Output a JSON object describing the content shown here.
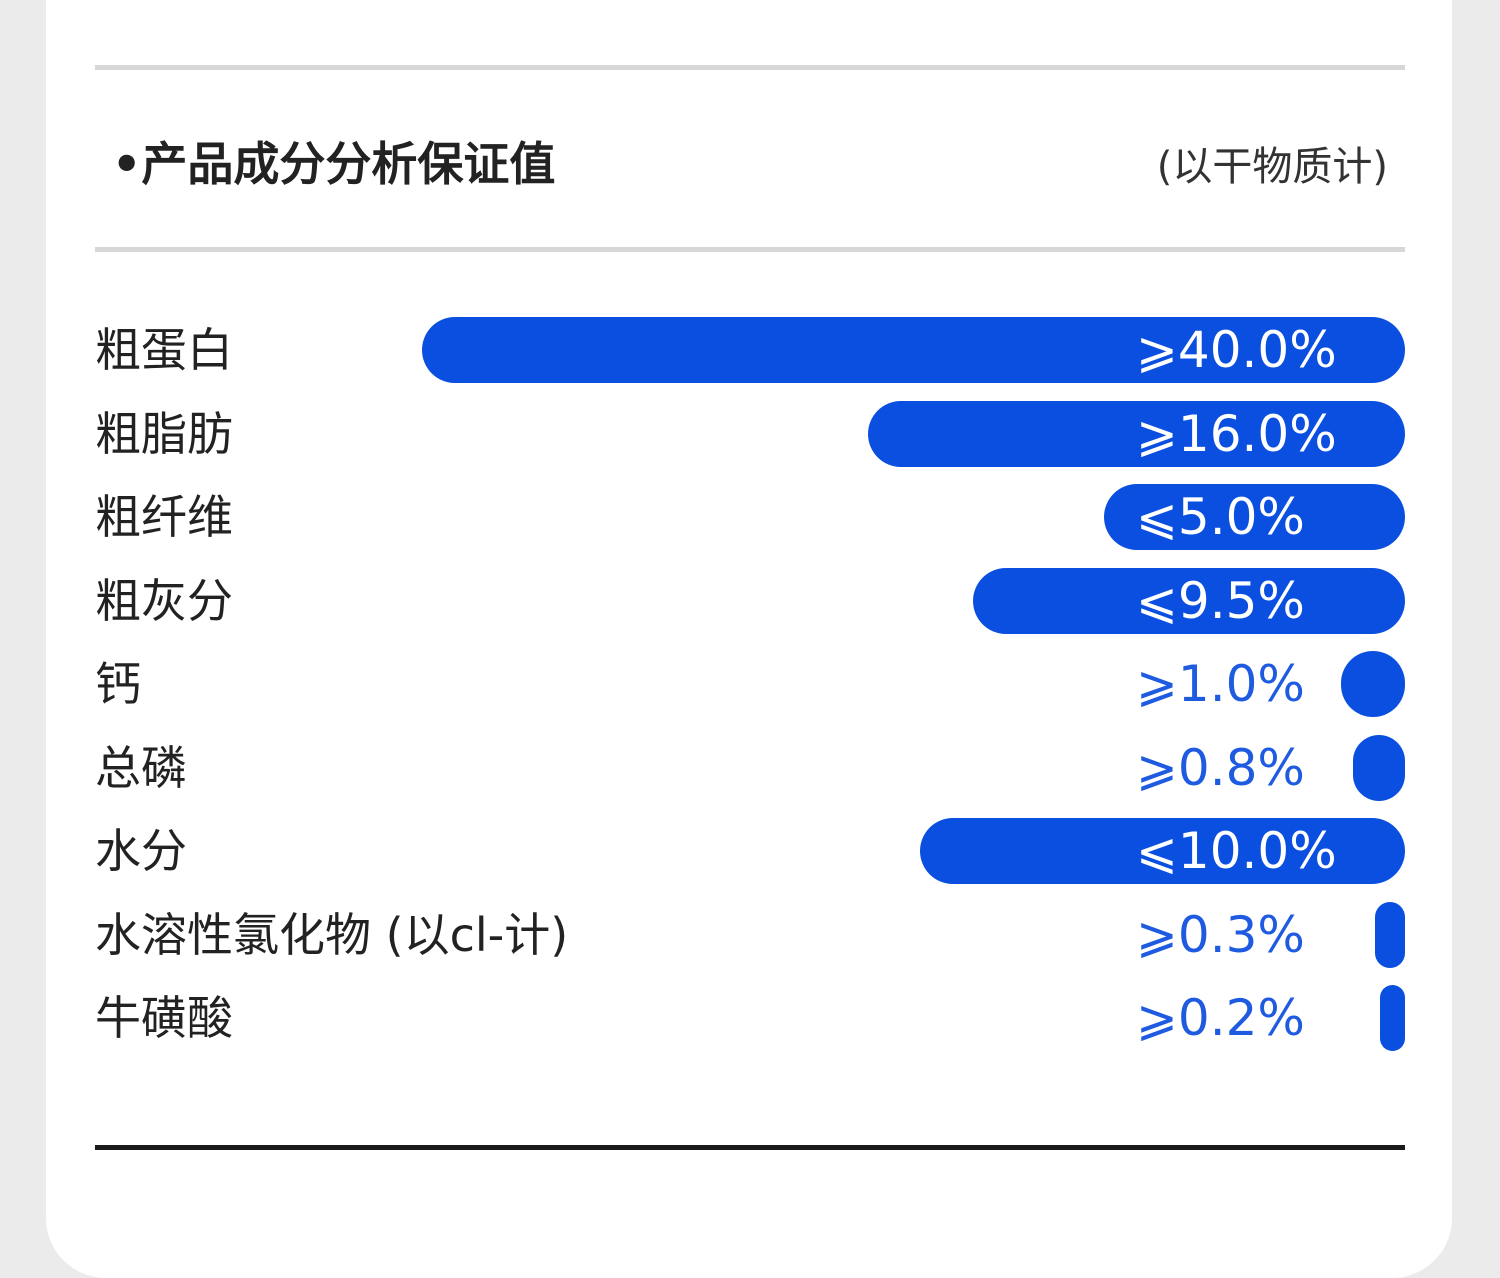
{
  "section": {
    "title": "•产品成分分析保证值",
    "note": "(以干物质计)"
  },
  "colors": {
    "bar": "#0a4fe0",
    "value_on_bar": "#ffffff",
    "value_off_bar": "#1f5be0"
  },
  "chart_data": {
    "type": "bar",
    "orientation": "horizontal",
    "scale": "non-linear (bar length not proportional to value)",
    "categories": [
      "粗蛋白",
      "粗脂肪",
      "粗纤维",
      "粗灰分",
      "钙",
      "总磷",
      "水分",
      "水溶性氯化物 (以cl-计)",
      "牛磺酸"
    ],
    "values": [
      40.0,
      16.0,
      5.0,
      9.5,
      1.0,
      0.8,
      10.0,
      0.3,
      0.2
    ],
    "value_labels": [
      "⩾40.0%",
      "⩾16.0%",
      "⩽5.0%",
      "⩽9.5%",
      "⩾1.0%",
      "⩾0.8%",
      "⩽10.0%",
      "⩾0.3%",
      "⩾0.2%"
    ],
    "bar_fill_fraction": [
      0.75,
      0.41,
      0.23,
      0.33,
      0.049,
      0.04,
      0.37,
      0.023,
      0.019
    ],
    "unit": "%"
  }
}
